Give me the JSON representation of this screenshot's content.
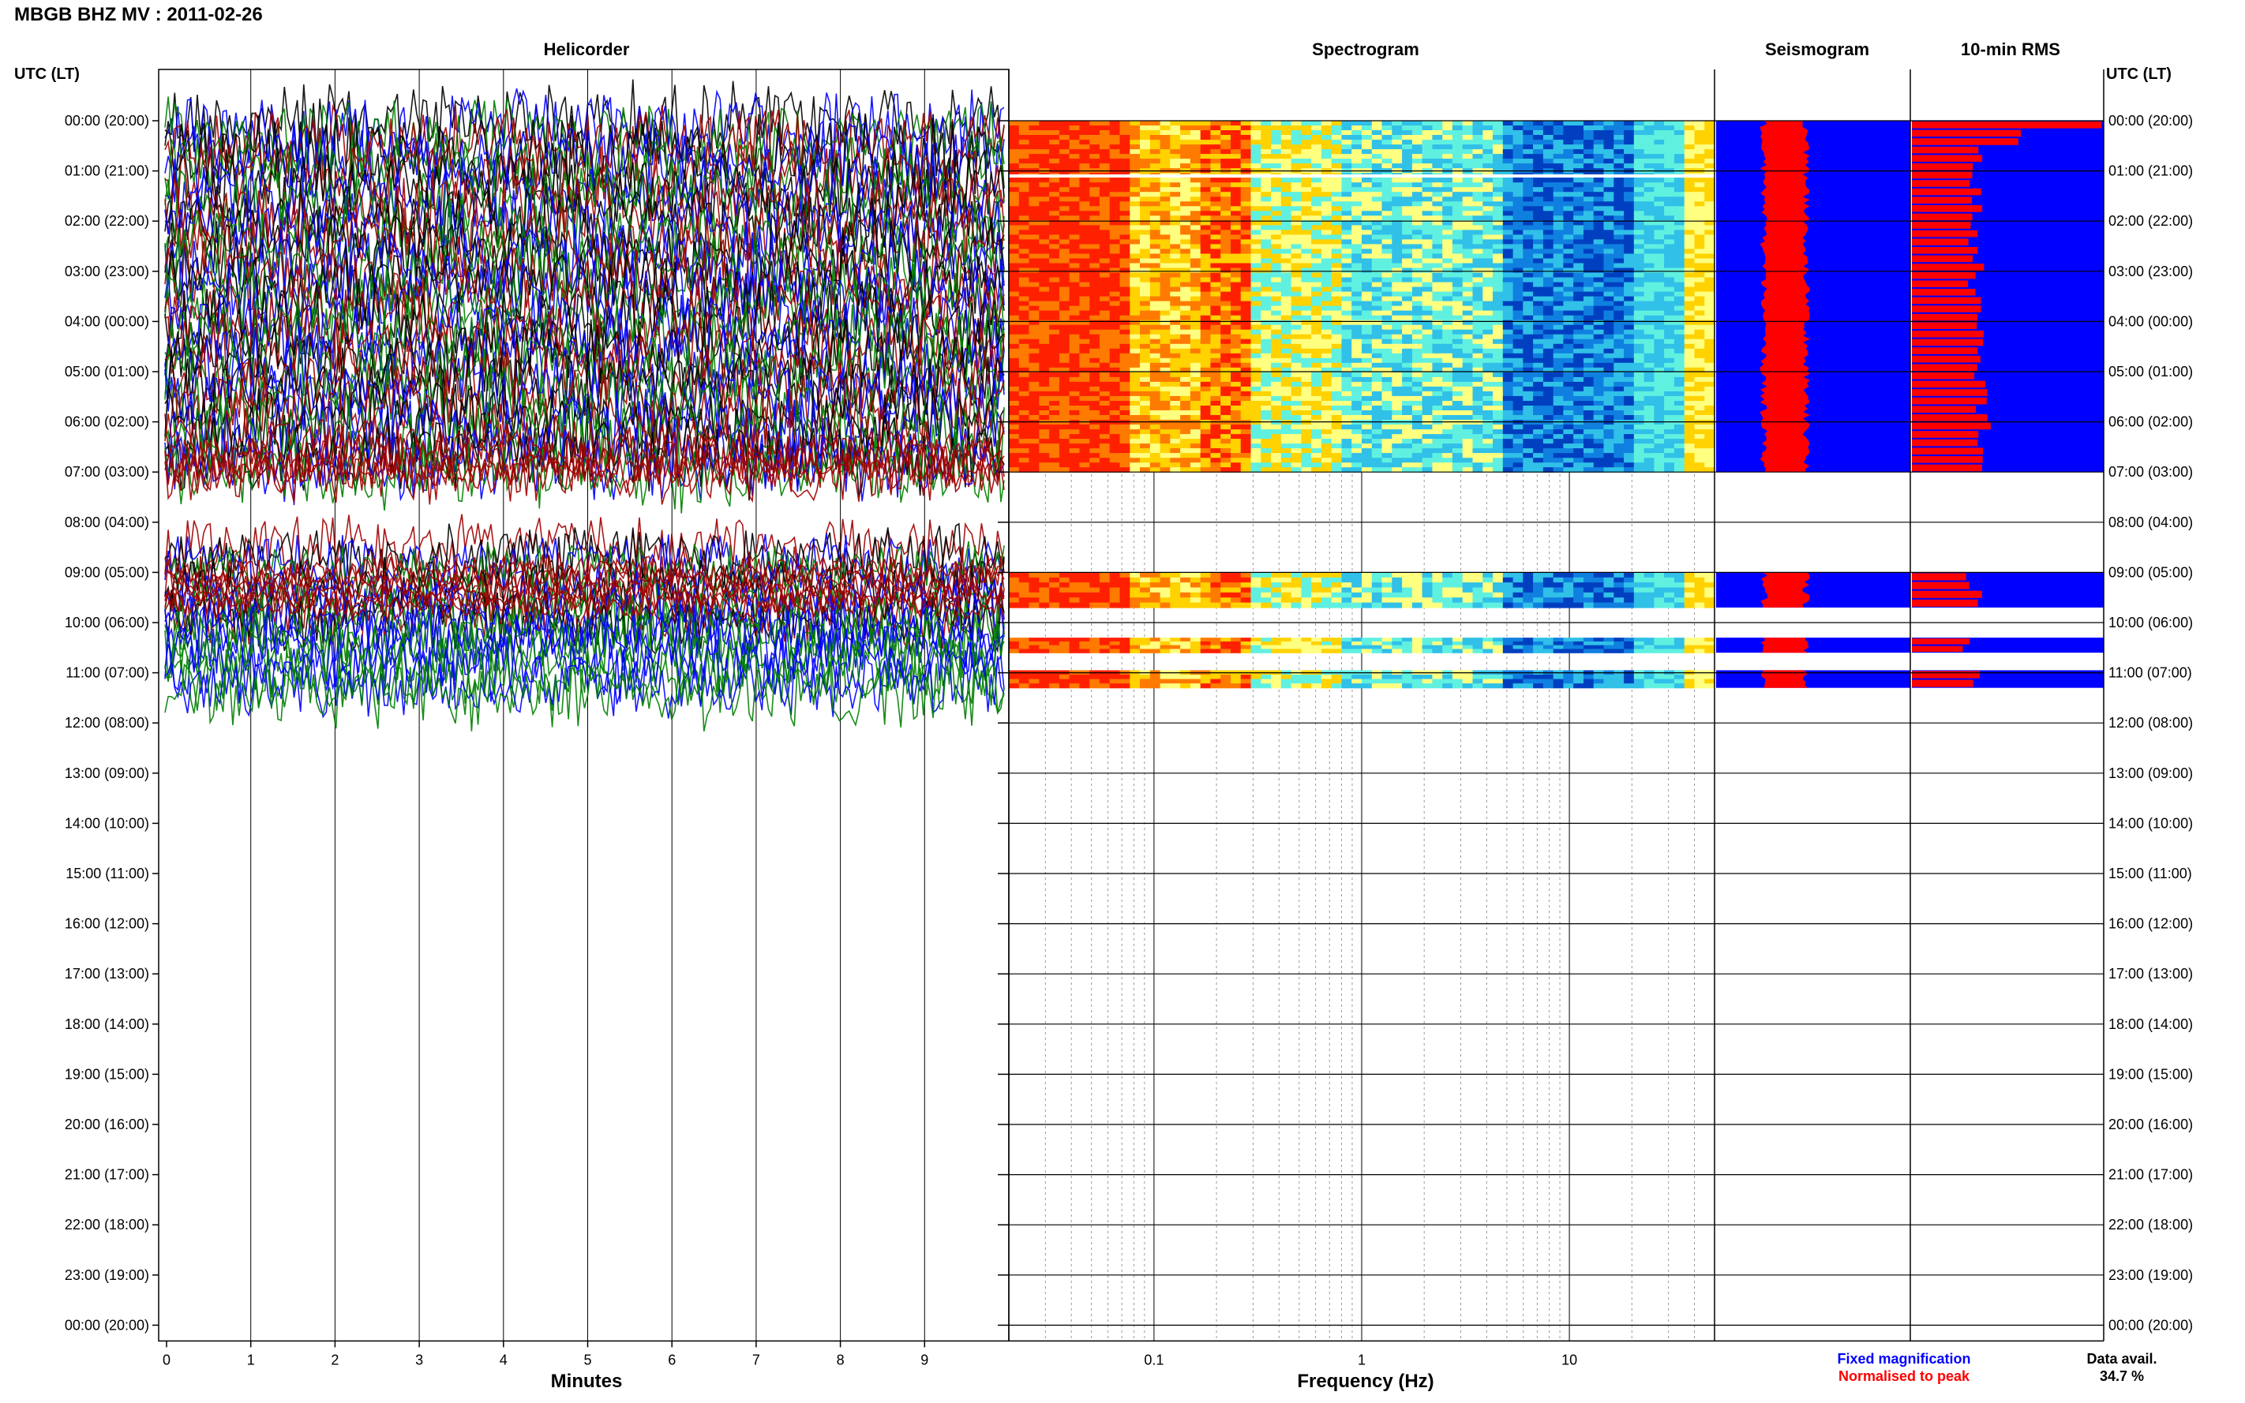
{
  "figure": {
    "title": "MBGB BHZ MV : 2011-02-26",
    "time_axis_label": "UTC (LT)",
    "panels": {
      "helicorder": "Helicorder",
      "spectrogram": "Spectrogram",
      "seismogram": "Seismogram",
      "rms": "10-min RMS"
    },
    "legend": {
      "fixed": "Fixed magnification",
      "normalised": "Normalised to peak",
      "fixed_color": "#0000ff",
      "normalised_color": "#ff0000"
    },
    "availability": {
      "label": "Data avail.",
      "value": "34.7 %"
    }
  },
  "chart_data": [
    {
      "type": "line",
      "panel": "Helicorder",
      "xlabel": "Minutes",
      "x_ticks": [
        "0",
        "1",
        "2",
        "3",
        "4",
        "5",
        "6",
        "7",
        "8",
        "9"
      ],
      "xlim": [
        0,
        10
      ],
      "time_labels": [
        "00:00 (20:00)",
        "01:00 (21:00)",
        "02:00 (22:00)",
        "03:00 (23:00)",
        "04:00 (00:00)",
        "05:00 (01:00)",
        "06:00 (02:00)",
        "07:00 (03:00)",
        "08:00 (04:00)",
        "09:00 (05:00)",
        "10:00 (06:00)",
        "11:00 (07:00)",
        "12:00 (08:00)",
        "13:00 (09:00)",
        "14:00 (10:00)",
        "15:00 (11:00)",
        "16:00 (12:00)",
        "17:00 (13:00)",
        "18:00 (14:00)",
        "19:00 (15:00)",
        "20:00 (16:00)",
        "21:00 (17:00)",
        "22:00 (18:00)",
        "23:00 (19:00)",
        "00:00 (20:00)"
      ],
      "trace_colors": [
        "#000000",
        "#0000ff",
        "#008000",
        "#a00000"
      ],
      "data_segments_utc_hours": [
        [
          0,
          7
        ],
        [
          8.5,
          11.5
        ]
      ]
    },
    {
      "type": "heatmap",
      "panel": "Spectrogram",
      "xlabel": "Frequency (Hz)",
      "x_scale": "log",
      "x_ticks": [
        "0.1",
        "1",
        "10"
      ],
      "xlim": [
        0.02,
        50
      ],
      "color_map": [
        "#ff2000",
        "#ff7a00",
        "#ffd200",
        "#ffff80",
        "#60f0e0",
        "#30c0e8",
        "#1080e0",
        "#0040c0"
      ],
      "data_segments_utc_hours": [
        [
          0,
          7
        ],
        [
          9,
          9.7
        ],
        [
          10.3,
          10.6
        ],
        [
          10.95,
          11.3
        ]
      ]
    },
    {
      "type": "bar",
      "panel": "Seismogram",
      "series": [
        {
          "name": "Fixed magnification",
          "color": "#0000ff"
        },
        {
          "name": "Normalised to peak",
          "color": "#ff0000"
        }
      ],
      "data_segments_utc_hours": [
        [
          0,
          7
        ],
        [
          9,
          9.7
        ],
        [
          10.3,
          10.6
        ],
        [
          10.95,
          11.3
        ]
      ]
    },
    {
      "type": "bar",
      "panel": "10-min RMS",
      "series": [
        {
          "name": "Fixed magnification",
          "color": "#0000ff"
        },
        {
          "name": "Normalised to peak",
          "color": "#ff0000"
        }
      ],
      "data_segments_utc_hours": [
        [
          0,
          7
        ],
        [
          9,
          9.7
        ],
        [
          10.3,
          10.6
        ],
        [
          10.95,
          11.3
        ]
      ]
    }
  ]
}
